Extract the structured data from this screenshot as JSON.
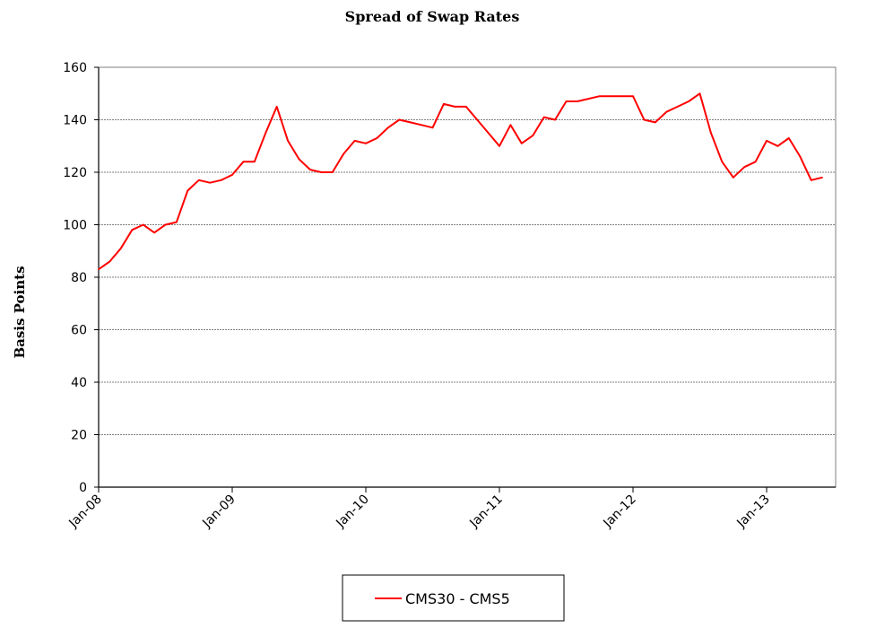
{
  "chart_data": {
    "type": "line",
    "title": "Spread of Swap Rates",
    "ylabel": "Basis Points",
    "xlabel": "",
    "ylim": [
      0,
      160
    ],
    "yticks": [
      0,
      20,
      40,
      60,
      80,
      100,
      120,
      140,
      160
    ],
    "xticks": [
      "Jan-08",
      "Jan-09",
      "Jan-10",
      "Jan-11",
      "Jan-12",
      "Jan-13"
    ],
    "xlim": [
      "Jan-08",
      "Jun-13"
    ],
    "grid": "horizontal dashed",
    "legend_position": "bottom-center",
    "line_color": "#ff0000",
    "series": [
      {
        "name": "CMS30 - CMS5",
        "x": [
          "Jan-08",
          "Feb-08",
          "Mar-08",
          "Apr-08",
          "May-08",
          "Jun-08",
          "Jul-08",
          "Aug-08",
          "Sep-08",
          "Oct-08",
          "Nov-08",
          "Dec-08",
          "Jan-09",
          "Feb-09",
          "Mar-09",
          "Apr-09",
          "May-09",
          "Jun-09",
          "Jul-09",
          "Aug-09",
          "Sep-09",
          "Oct-09",
          "Nov-09",
          "Dec-09",
          "Jan-10",
          "Feb-10",
          "Mar-10",
          "Apr-10",
          "May-10",
          "Jun-10",
          "Jul-10",
          "Aug-10",
          "Sep-10",
          "Oct-10",
          "Nov-10",
          "Dec-10",
          "Jan-11",
          "Feb-11",
          "Mar-11",
          "Apr-11",
          "May-11",
          "Jun-11",
          "Jul-11",
          "Aug-11",
          "Sep-11",
          "Oct-11",
          "Nov-11",
          "Dec-11",
          "Jan-12",
          "Feb-12",
          "Mar-12",
          "Apr-12",
          "May-12",
          "Jun-12",
          "Jul-12",
          "Aug-12",
          "Sep-12",
          "Oct-12",
          "Nov-12",
          "Dec-12",
          "Jan-13",
          "Feb-13",
          "Mar-13",
          "Apr-13",
          "May-13",
          "Jun-13"
        ],
        "values": [
          83,
          86,
          91,
          98,
          100,
          97,
          100,
          101,
          113,
          117,
          116,
          117,
          119,
          124,
          124,
          135,
          145,
          132,
          125,
          121,
          120,
          120,
          127,
          132,
          131,
          133,
          137,
          140,
          139,
          138,
          137,
          146,
          145,
          145,
          140,
          135,
          130,
          138,
          131,
          134,
          141,
          140,
          147,
          147,
          148,
          149,
          149,
          149,
          149,
          140,
          139,
          143,
          145,
          147,
          150,
          135,
          124,
          118,
          122,
          124,
          132,
          130,
          133,
          126,
          117,
          118
        ]
      }
    ]
  }
}
